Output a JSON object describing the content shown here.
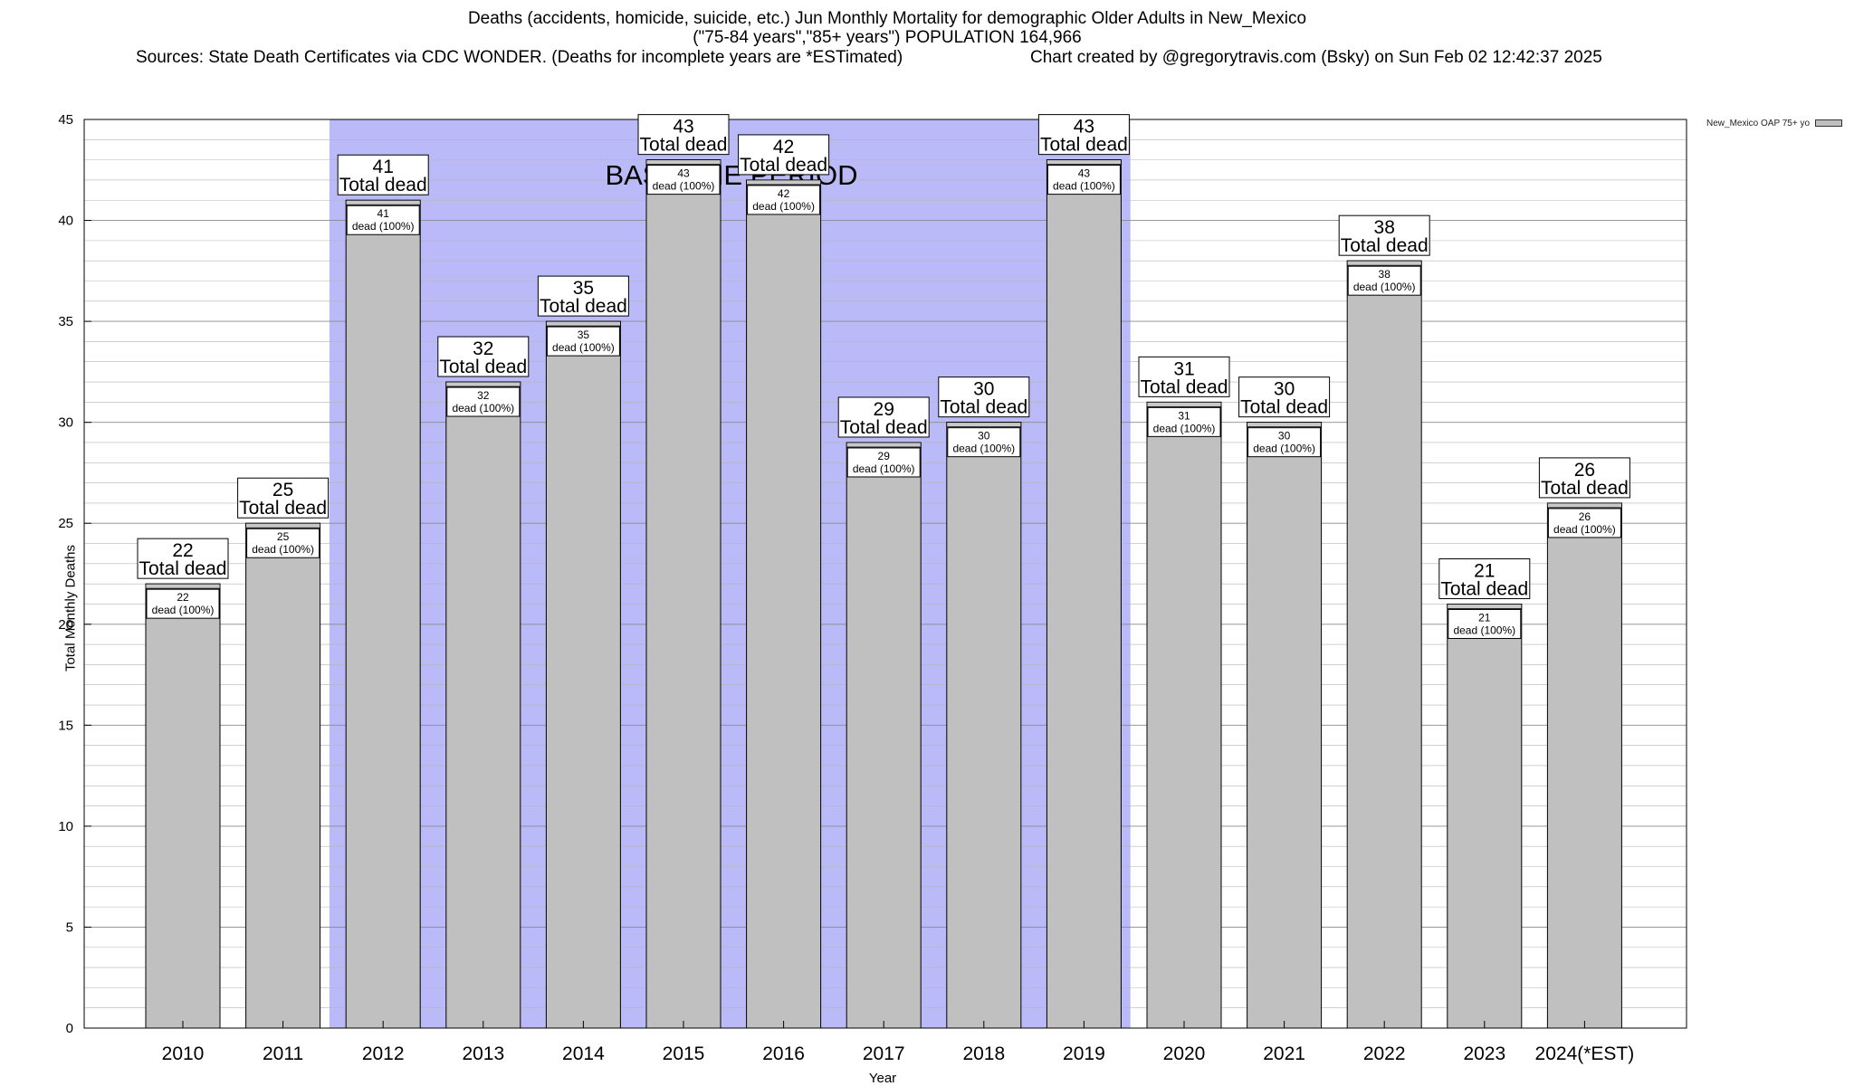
{
  "header": {
    "title_line1": "Deaths (accidents, homicide, suicide, etc.) Jun Monthly Mortality for demographic Older Adults in New_Mexico",
    "title_line2": "(\"75-84 years\",\"85+ years\") POPULATION 164,966",
    "sources": "Sources: State Death Certificates via CDC WONDER. (Deaths for incomplete years are *ESTimated)",
    "credit": "Chart created by @gregorytravis.com (Bsky) on Sun Feb 02 12:42:37 2025"
  },
  "chart_data": {
    "type": "bar",
    "title": "Deaths (accidents, homicide, suicide, etc.) Jun Monthly Mortality for demographic Older Adults in New_Mexico",
    "subtitle": "(\"75-84 years\",\"85+ years\") POPULATION 164,966",
    "xlabel": "Year",
    "ylabel": "Total Monthly Deaths",
    "ylim": [
      0,
      45
    ],
    "yticks": [
      0,
      5,
      10,
      15,
      20,
      25,
      30,
      35,
      40,
      45
    ],
    "grid": true,
    "legend_position": "top-right",
    "categories": [
      "2010",
      "2011",
      "2012",
      "2013",
      "2014",
      "2015",
      "2016",
      "2017",
      "2018",
      "2019",
      "2020",
      "2021",
      "2022",
      "2023",
      "2024(*EST)"
    ],
    "series": [
      {
        "name": "New_Mexico OAP 75+ yo",
        "values": [
          22,
          25,
          41,
          32,
          35,
          43,
          42,
          29,
          30,
          43,
          31,
          30,
          38,
          21,
          26
        ],
        "color": "#c0c0c0"
      }
    ],
    "top_label_suffix": "Total dead",
    "inner_label_suffix": "dead (100%)",
    "baseline_period": {
      "label": "BASELINE PERIOD",
      "start": "2012",
      "end": "2019",
      "color": "#babaf8"
    }
  }
}
